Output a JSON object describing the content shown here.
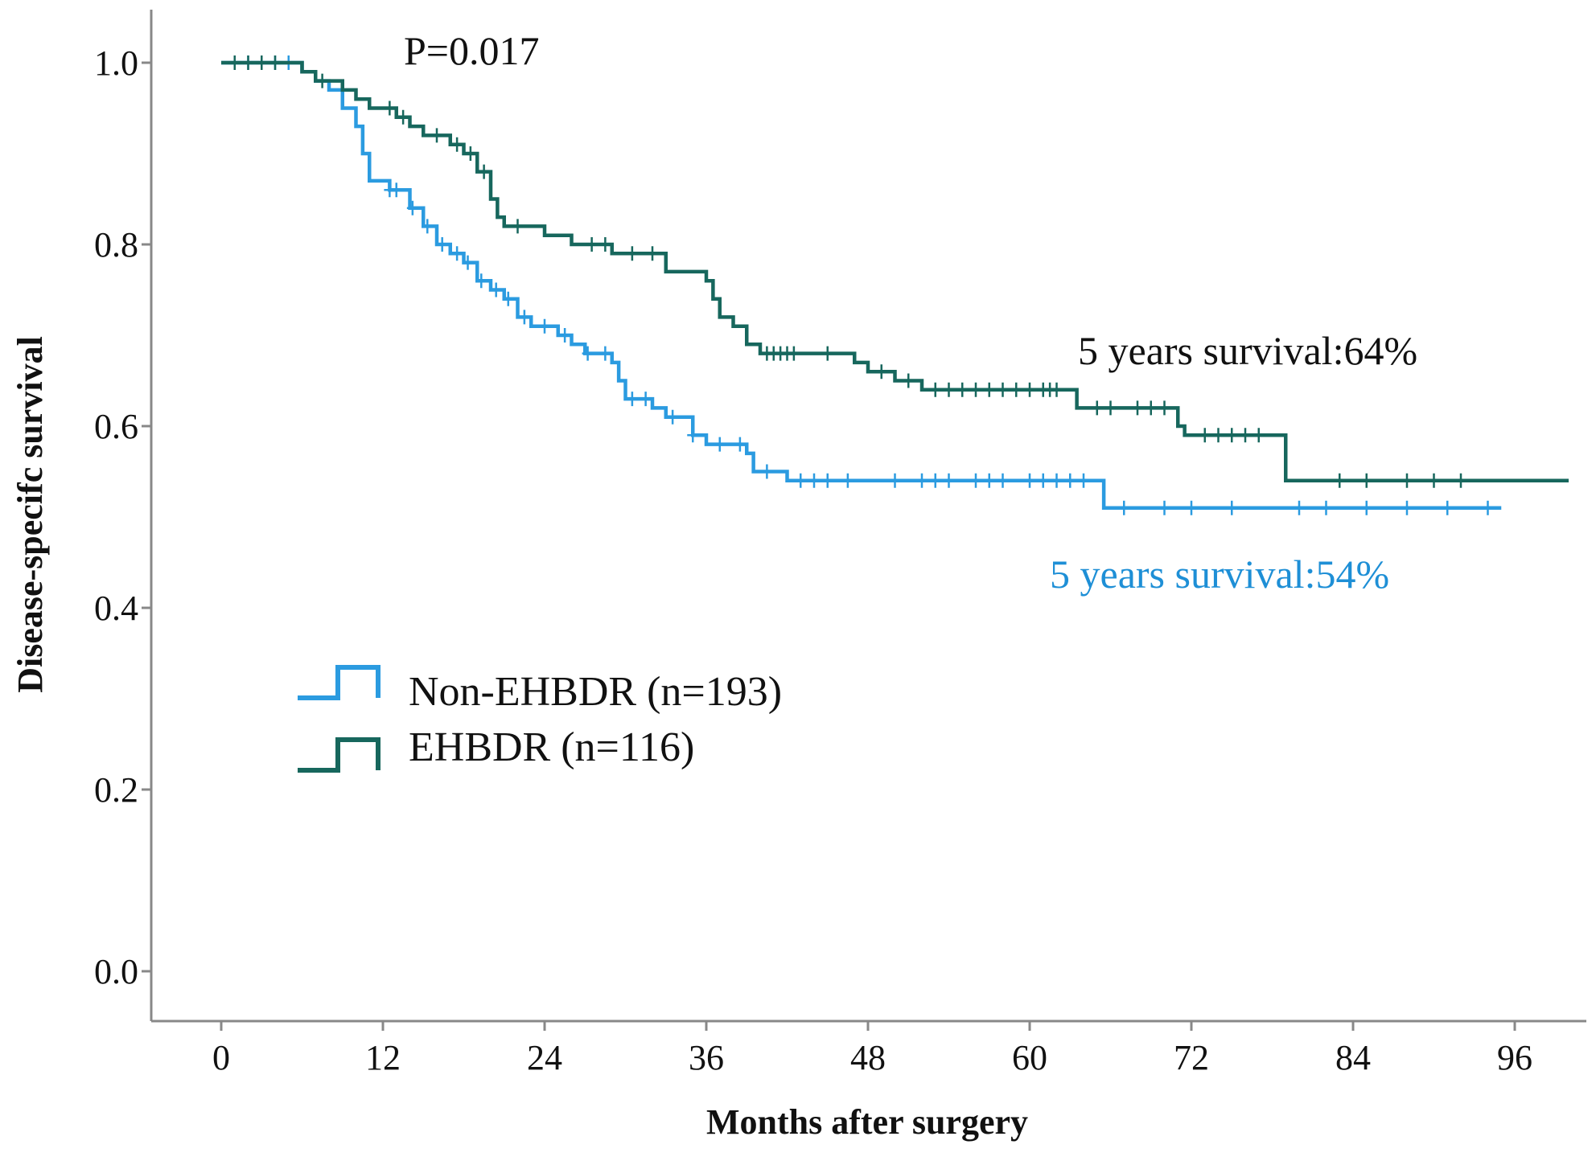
{
  "chart_data": {
    "type": "line",
    "subtype": "kaplan-meier",
    "xlabel": "Months after surgery",
    "ylabel": "Disease-specifc survival",
    "xlim": [
      0,
      100
    ],
    "ylim": [
      0,
      1.05
    ],
    "xticks": [
      0,
      12,
      24,
      36,
      48,
      60,
      72,
      84,
      96
    ],
    "yticks": [
      0.0,
      0.2,
      0.4,
      0.6,
      0.8,
      1.0
    ],
    "ytick_labels": [
      "0.0",
      "0.2",
      "0.4",
      "0.6",
      "0.8",
      "1.0"
    ],
    "grid": false,
    "legend_position": "middle-left",
    "series": [
      {
        "name": "Non-EHBDR (n=193)",
        "color": "#2b9be0",
        "steps": [
          [
            0,
            1.0
          ],
          [
            6,
            0.99
          ],
          [
            7,
            0.98
          ],
          [
            8,
            0.97
          ],
          [
            9,
            0.95
          ],
          [
            10,
            0.93
          ],
          [
            10.5,
            0.9
          ],
          [
            11,
            0.87
          ],
          [
            12.5,
            0.86
          ],
          [
            14,
            0.84
          ],
          [
            15,
            0.82
          ],
          [
            16,
            0.8
          ],
          [
            17,
            0.79
          ],
          [
            18,
            0.78
          ],
          [
            19,
            0.76
          ],
          [
            20,
            0.75
          ],
          [
            21,
            0.74
          ],
          [
            22,
            0.72
          ],
          [
            23,
            0.71
          ],
          [
            25,
            0.7
          ],
          [
            26,
            0.69
          ],
          [
            27,
            0.68
          ],
          [
            29,
            0.67
          ],
          [
            29.5,
            0.65
          ],
          [
            30,
            0.63
          ],
          [
            32,
            0.62
          ],
          [
            33,
            0.61
          ],
          [
            35,
            0.59
          ],
          [
            36,
            0.58
          ],
          [
            39,
            0.57
          ],
          [
            39.5,
            0.55
          ],
          [
            42,
            0.54
          ],
          [
            65.5,
            0.51
          ],
          [
            95,
            0.51
          ]
        ],
        "censor_times": [
          1,
          2,
          3,
          4,
          5,
          12.5,
          13,
          14.2,
          15.3,
          16.4,
          17.5,
          18.3,
          19.3,
          20.4,
          21.3,
          22.5,
          24,
          25.5,
          27.2,
          28.5,
          30.5,
          31.5,
          33.5,
          35,
          37,
          38.5,
          40.5,
          43,
          44,
          45,
          46.5,
          50,
          52,
          53,
          54,
          56,
          57,
          58,
          60,
          61,
          62,
          63,
          64,
          67,
          70,
          72,
          75,
          80,
          82,
          85,
          88,
          91,
          94
        ],
        "annotation": "5 years survival:54%"
      },
      {
        "name": "EHBDR (n=116)",
        "color": "#17675d",
        "steps": [
          [
            0,
            1.0
          ],
          [
            6,
            0.99
          ],
          [
            7,
            0.98
          ],
          [
            9,
            0.97
          ],
          [
            10,
            0.96
          ],
          [
            11,
            0.95
          ],
          [
            13,
            0.94
          ],
          [
            14,
            0.93
          ],
          [
            15,
            0.92
          ],
          [
            17,
            0.91
          ],
          [
            18,
            0.9
          ],
          [
            19,
            0.88
          ],
          [
            20,
            0.85
          ],
          [
            20.5,
            0.83
          ],
          [
            21,
            0.82
          ],
          [
            24,
            0.81
          ],
          [
            26,
            0.8
          ],
          [
            29,
            0.79
          ],
          [
            33,
            0.77
          ],
          [
            36,
            0.76
          ],
          [
            36.5,
            0.74
          ],
          [
            37,
            0.72
          ],
          [
            38,
            0.71
          ],
          [
            39,
            0.69
          ],
          [
            40,
            0.68
          ],
          [
            47,
            0.67
          ],
          [
            48,
            0.66
          ],
          [
            50,
            0.65
          ],
          [
            52,
            0.64
          ],
          [
            63.5,
            0.62
          ],
          [
            71,
            0.6
          ],
          [
            71.5,
            0.59
          ],
          [
            79,
            0.54
          ],
          [
            100,
            0.54
          ]
        ],
        "censor_times": [
          1,
          2,
          3,
          4,
          7.5,
          12.5,
          13.5,
          16,
          17.5,
          18.5,
          19.5,
          22,
          27.5,
          28.5,
          30.5,
          32,
          40.5,
          41,
          41.5,
          42,
          42.5,
          45,
          49,
          51,
          53,
          54,
          55,
          56,
          57,
          58,
          59,
          60,
          61,
          61.5,
          62,
          65,
          66,
          68,
          69,
          70,
          73,
          74,
          75,
          76,
          77,
          83,
          85,
          88,
          90,
          92
        ],
        "annotation": "5 years survival:64%"
      }
    ],
    "annotations": [
      "P=0.017"
    ],
    "pvalue_label": "P=0.017",
    "annotation_color_top": "#111111",
    "annotation_color_bottom": "#1e8fd6"
  }
}
